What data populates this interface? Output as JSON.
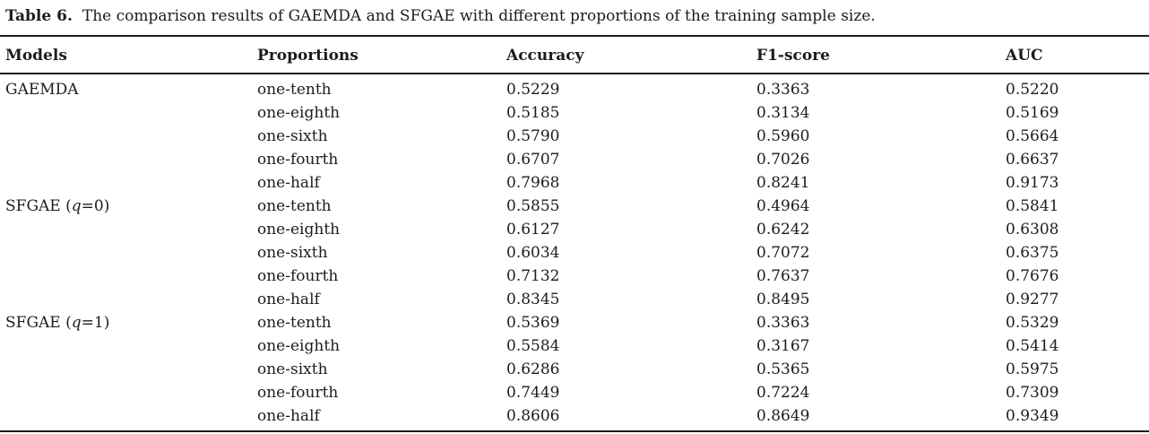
{
  "table": {
    "label": "Table 6.",
    "caption": "The comparison results of GAEMDA and SFGAE with different proportions of the training sample size.",
    "columns": [
      "Models",
      "Proportions",
      "Accuracy",
      "F1-score",
      "AUC"
    ],
    "groups": [
      {
        "model": {
          "prefix": "GAEMDA",
          "italic": "",
          "suffix": ""
        },
        "rows": [
          {
            "proportion": "one-tenth",
            "accuracy": "0.5229",
            "f1": "0.3363",
            "auc": "0.5220"
          },
          {
            "proportion": "one-eighth",
            "accuracy": "0.5185",
            "f1": "0.3134",
            "auc": "0.5169"
          },
          {
            "proportion": "one-sixth",
            "accuracy": "0.5790",
            "f1": "0.5960",
            "auc": "0.5664"
          },
          {
            "proportion": "one-fourth",
            "accuracy": "0.6707",
            "f1": "0.7026",
            "auc": "0.6637"
          },
          {
            "proportion": "one-half",
            "accuracy": "0.7968",
            "f1": "0.8241",
            "auc": "0.9173"
          }
        ]
      },
      {
        "model": {
          "prefix": "SFGAE (",
          "italic": "q",
          "suffix": "=0)"
        },
        "rows": [
          {
            "proportion": "one-tenth",
            "accuracy": "0.5855",
            "f1": "0.4964",
            "auc": "0.5841"
          },
          {
            "proportion": "one-eighth",
            "accuracy": "0.6127",
            "f1": "0.6242",
            "auc": "0.6308"
          },
          {
            "proportion": "one-sixth",
            "accuracy": "0.6034",
            "f1": "0.7072",
            "auc": "0.6375"
          },
          {
            "proportion": "one-fourth",
            "accuracy": "0.7132",
            "f1": "0.7637",
            "auc": "0.7676"
          },
          {
            "proportion": "one-half",
            "accuracy": "0.8345",
            "f1": "0.8495",
            "auc": "0.9277"
          }
        ]
      },
      {
        "model": {
          "prefix": "SFGAE (",
          "italic": "q",
          "suffix": "=1)"
        },
        "rows": [
          {
            "proportion": "one-tenth",
            "accuracy": "0.5369",
            "f1": "0.3363",
            "auc": "0.5329"
          },
          {
            "proportion": "one-eighth",
            "accuracy": "0.5584",
            "f1": "0.3167",
            "auc": "0.5414"
          },
          {
            "proportion": "one-sixth",
            "accuracy": "0.6286",
            "f1": "0.5365",
            "auc": "0.5975"
          },
          {
            "proportion": "one-fourth",
            "accuracy": "0.7449",
            "f1": "0.7224",
            "auc": "0.7309"
          },
          {
            "proportion": "one-half",
            "accuracy": "0.8606",
            "f1": "0.8649",
            "auc": "0.9349"
          }
        ]
      }
    ]
  }
}
